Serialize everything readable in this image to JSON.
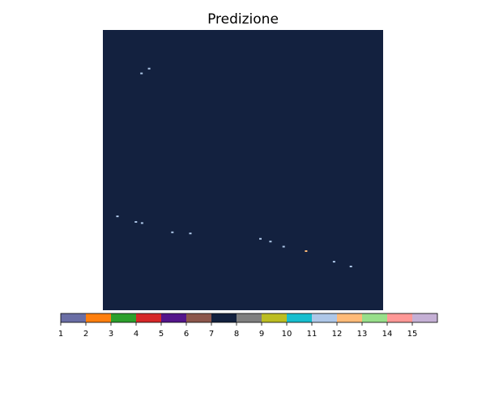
{
  "chart_data": {
    "type": "heatmap",
    "title": "Predizione",
    "xlabel": "",
    "ylabel": "",
    "background_class": 7,
    "colorbar": {
      "orientation": "horizontal",
      "vmin": 1,
      "vmax": 16,
      "tick_labels": [
        "1",
        "2",
        "3",
        "4",
        "5",
        "6",
        "7",
        "8",
        "9",
        "10",
        "11",
        "12",
        "13",
        "14",
        "15"
      ],
      "colors": [
        "#6a6ea5",
        "#ff7f0e",
        "#2ca02c",
        "#d62728",
        "#54158b",
        "#8c564b",
        "#13213f",
        "#7f7f7f",
        "#bcbd22",
        "#17becf",
        "#aec7e8",
        "#ffbb78",
        "#98df8a",
        "#ff9896",
        "#c5b0d5"
      ]
    },
    "class_colors": {
      "7": "#13213f",
      "11": "#aec7e8",
      "12": "#ffbb78",
      "8": "#7f7f7f"
    },
    "specks": [
      {
        "x": 0.165,
        "y": 0.138,
        "cls": 11
      },
      {
        "x": 0.138,
        "y": 0.155,
        "cls": 11
      },
      {
        "x": 0.052,
        "y": 0.665,
        "cls": 11
      },
      {
        "x": 0.118,
        "y": 0.685,
        "cls": 11
      },
      {
        "x": 0.14,
        "y": 0.689,
        "cls": 11
      },
      {
        "x": 0.248,
        "y": 0.722,
        "cls": 11
      },
      {
        "x": 0.312,
        "y": 0.726,
        "cls": 11
      },
      {
        "x": 0.562,
        "y": 0.745,
        "cls": 11
      },
      {
        "x": 0.598,
        "y": 0.755,
        "cls": 11
      },
      {
        "x": 0.645,
        "y": 0.773,
        "cls": 11
      },
      {
        "x": 0.725,
        "y": 0.789,
        "cls": 12
      },
      {
        "x": 0.825,
        "y": 0.827,
        "cls": 11
      },
      {
        "x": 0.885,
        "y": 0.844,
        "cls": 11
      }
    ]
  }
}
